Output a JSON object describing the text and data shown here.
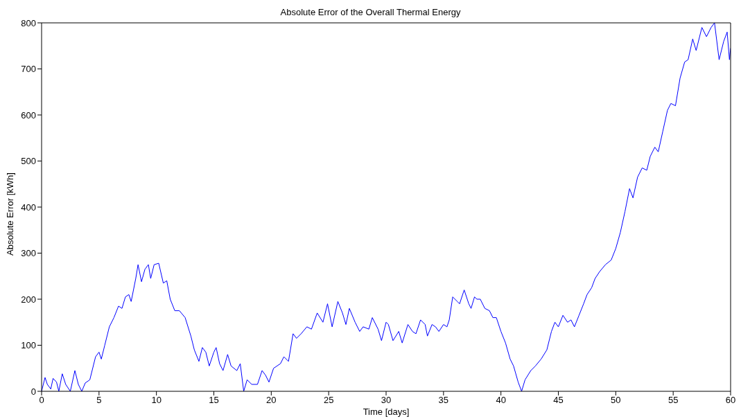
{
  "chart_data": {
    "type": "line",
    "title": "Absolute Error of the Overall Thermal Energy",
    "xlabel": "Time [days]",
    "ylabel": "Absolute Error [kWh]",
    "x": [
      0,
      0.3,
      0.5,
      0.8,
      1.0,
      1.3,
      1.5,
      1.8,
      2.1,
      2.5,
      2.9,
      3.2,
      3.5,
      3.8,
      4.2,
      4.7,
      5.0,
      5.2,
      5.5,
      5.9,
      6.3,
      6.7,
      7.0,
      7.3,
      7.6,
      7.8,
      8.2,
      8.4,
      8.7,
      9.0,
      9.3,
      9.5,
      9.8,
      10.2,
      10.6,
      10.9,
      11.2,
      11.6,
      12.0,
      12.5,
      13.0,
      13.3,
      13.7,
      14.0,
      14.3,
      14.6,
      15.0,
      15.2,
      15.5,
      15.8,
      16.2,
      16.5,
      17.0,
      17.3,
      17.6,
      17.9,
      18.3,
      18.8,
      19.2,
      19.5,
      19.8,
      20.2,
      20.8,
      21.1,
      21.5,
      21.9,
      22.2,
      22.6,
      23.1,
      23.5,
      24.0,
      24.5,
      24.9,
      25.3,
      25.8,
      26.2,
      26.5,
      26.8,
      27.3,
      27.7,
      28.0,
      28.5,
      28.8,
      29.3,
      29.6,
      30.0,
      30.2,
      30.6,
      31.1,
      31.4,
      31.9,
      32.3,
      32.6,
      33.0,
      33.4,
      33.6,
      34.0,
      34.3,
      34.6,
      35.0,
      35.3,
      35.5,
      35.8,
      36.2,
      36.4,
      36.8,
      37.2,
      37.4,
      37.7,
      37.9,
      38.2,
      38.6,
      39.0,
      39.3,
      39.6,
      40.0,
      40.4,
      40.8,
      41.1,
      41.5,
      41.8,
      42.1,
      42.6,
      43.0,
      43.5,
      44.0,
      44.4,
      44.7,
      45.0,
      45.4,
      45.8,
      46.1,
      46.4,
      46.8,
      47.2,
      47.5,
      47.9,
      48.2,
      48.6,
      49.1,
      49.6,
      50.0,
      50.4,
      50.8,
      51.2,
      51.5,
      51.9,
      52.3,
      52.7,
      53.0,
      53.4,
      53.7,
      54.1,
      54.5,
      54.8,
      55.2,
      55.6,
      56.0,
      56.3,
      56.7,
      57.0,
      57.5,
      57.9,
      58.3,
      58.6,
      59.0,
      59.4,
      59.7,
      59.9,
      60.0
    ],
    "series": [
      {
        "color": "#0000ff",
        "values": [
          0,
          30,
          15,
          5,
          28,
          20,
          0,
          38,
          15,
          0,
          45,
          15,
          0,
          18,
          25,
          75,
          85,
          70,
          100,
          140,
          160,
          185,
          180,
          205,
          210,
          195,
          245,
          275,
          238,
          265,
          275,
          245,
          275,
          278,
          235,
          240,
          200,
          175,
          175,
          160,
          120,
          90,
          65,
          95,
          85,
          55,
          85,
          95,
          60,
          45,
          80,
          55,
          45,
          60,
          0,
          25,
          15,
          15,
          45,
          35,
          20,
          50,
          60,
          75,
          65,
          125,
          115,
          125,
          140,
          135,
          170,
          150,
          190,
          140,
          195,
          170,
          145,
          180,
          150,
          130,
          140,
          135,
          160,
          135,
          110,
          150,
          145,
          110,
          130,
          105,
          145,
          130,
          125,
          155,
          145,
          120,
          145,
          140,
          130,
          145,
          140,
          155,
          205,
          195,
          190,
          220,
          190,
          180,
          205,
          200,
          200,
          180,
          175,
          160,
          160,
          130,
          105,
          70,
          55,
          20,
          0,
          25,
          45,
          55,
          70,
          90,
          130,
          150,
          140,
          165,
          150,
          155,
          140,
          165,
          190,
          210,
          225,
          245,
          260,
          275,
          285,
          310,
          345,
          390,
          440,
          420,
          465,
          485,
          480,
          510,
          530,
          520,
          565,
          610,
          625,
          620,
          680,
          715,
          720,
          765,
          740,
          790,
          770,
          790,
          800,
          720,
          760,
          780,
          720,
          745
        ]
      }
    ],
    "xlim": [
      0,
      60
    ],
    "xticks": [
      0,
      5,
      10,
      15,
      20,
      25,
      30,
      35,
      40,
      45,
      50,
      55,
      60
    ],
    "ylim": [
      0,
      800
    ],
    "yticks": [
      0,
      100,
      200,
      300,
      400,
      500,
      600,
      700,
      800
    ],
    "grid": false,
    "marker": "none",
    "line_style": "solid"
  }
}
